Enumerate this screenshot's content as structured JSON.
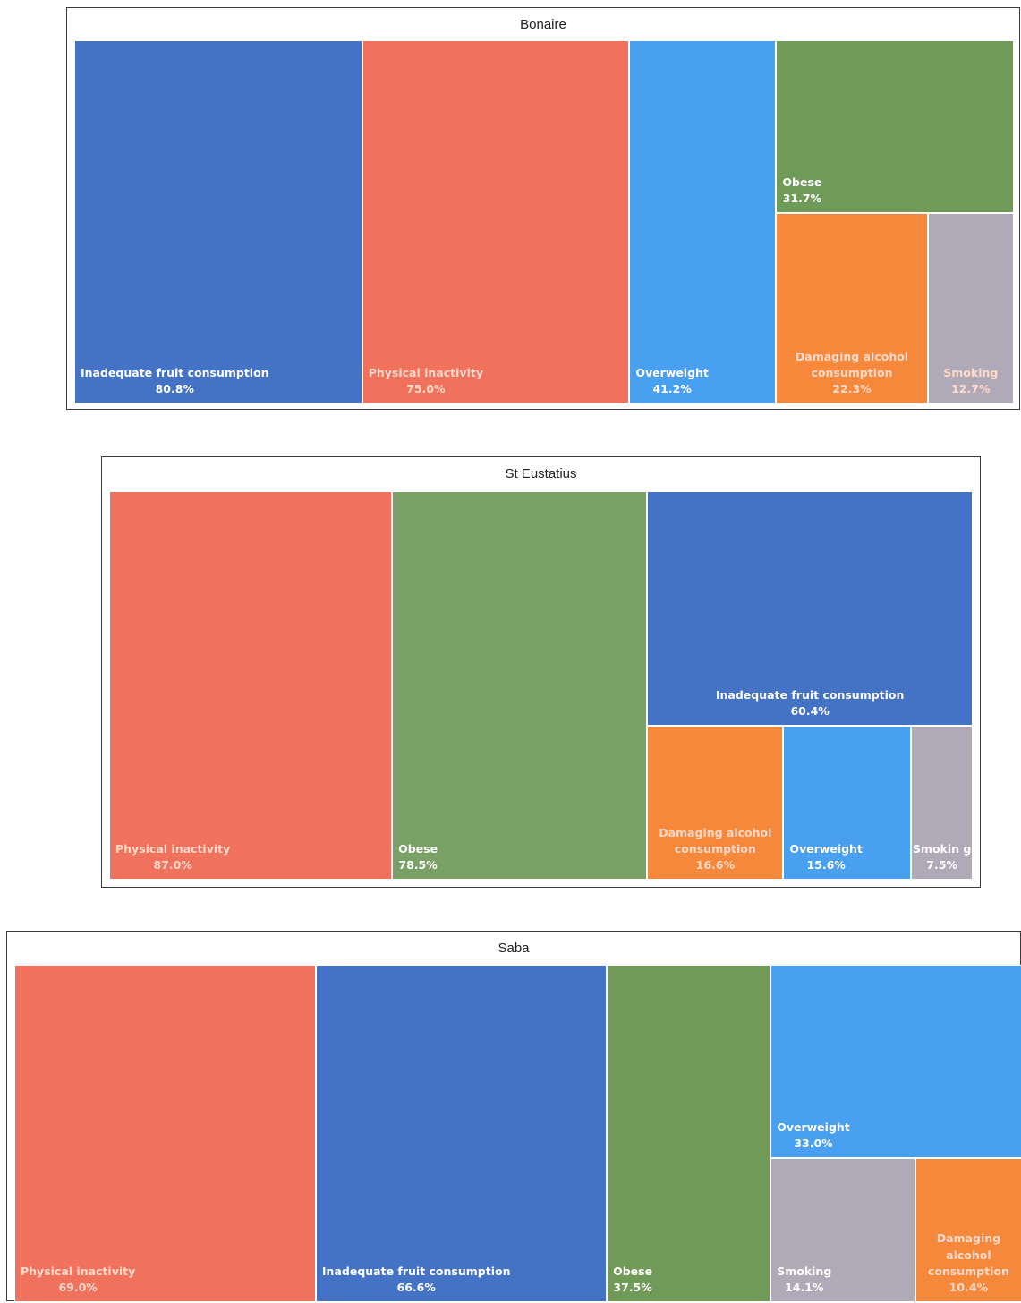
{
  "chart_data": [
    {
      "type": "treemap",
      "title": "Bonaire",
      "colors": {
        "Inadequate fruit consumption": "#4472c4",
        "Physical inactivity": "#f0725c",
        "Overweight": "#4aa0f0",
        "Obese": "#6f9a57",
        "Damaging alcohol consumption": "#f5883a",
        "Smoking": "#b0a9b7"
      },
      "items": [
        {
          "name": "Inadequate fruit consumption",
          "value": 80.8,
          "label": "80.8%"
        },
        {
          "name": "Physical inactivity",
          "value": 75.0,
          "label": "75.0%"
        },
        {
          "name": "Overweight",
          "value": 41.2,
          "label": "41.2%"
        },
        {
          "name": "Obese",
          "value": 31.7,
          "label": "31.7%"
        },
        {
          "name": "Damaging alcohol consumption",
          "value": 22.3,
          "label": "22.3%"
        },
        {
          "name": "Smoking",
          "value": 12.7,
          "label": "12.7%"
        }
      ]
    },
    {
      "type": "treemap",
      "title": "St Eustatius",
      "colors": {
        "Physical inactivity": "#f0725c",
        "Obese": "#79a166",
        "Inadequate fruit consumption": "#4472c4",
        "Damaging alcohol consumption": "#f5883a",
        "Overweight": "#4aa0f0",
        "Smoking": "#b0a9b7"
      },
      "items": [
        {
          "name": "Physical inactivity",
          "value": 87.0,
          "label": "87.0%"
        },
        {
          "name": "Obese",
          "value": 78.5,
          "label": "78.5%"
        },
        {
          "name": "Inadequate fruit consumption",
          "value": 60.4,
          "label": "60.4%"
        },
        {
          "name": "Damaging alcohol consumption",
          "value": 16.6,
          "label": "16.6%"
        },
        {
          "name": "Overweight",
          "value": 15.6,
          "label": "15.6%"
        },
        {
          "name": "Smoking",
          "display_name": "Smokin g",
          "value": 7.5,
          "label": "7.5%"
        }
      ]
    },
    {
      "type": "treemap",
      "title": "Saba",
      "colors": {
        "Physical inactivity": "#f0725c",
        "Inadequate fruit consumption": "#4472c4",
        "Obese": "#6f9a57",
        "Overweight": "#4aa0f0",
        "Smoking": "#b0a9b7",
        "Damaging alcohol consumption": "#f5883a"
      },
      "items": [
        {
          "name": "Physical inactivity",
          "value": 69.0,
          "label": "69.0%"
        },
        {
          "name": "Inadequate fruit consumption",
          "value": 66.6,
          "label": "66.6%"
        },
        {
          "name": "Obese",
          "value": 37.5,
          "label": "37.5%"
        },
        {
          "name": "Overweight",
          "value": 33.0,
          "label": "33.0%"
        },
        {
          "name": "Smoking",
          "value": 14.1,
          "label": "14.1%"
        },
        {
          "name": "Damaging alcohol consumption",
          "value": 10.4,
          "label": "10.4%"
        }
      ]
    }
  ]
}
